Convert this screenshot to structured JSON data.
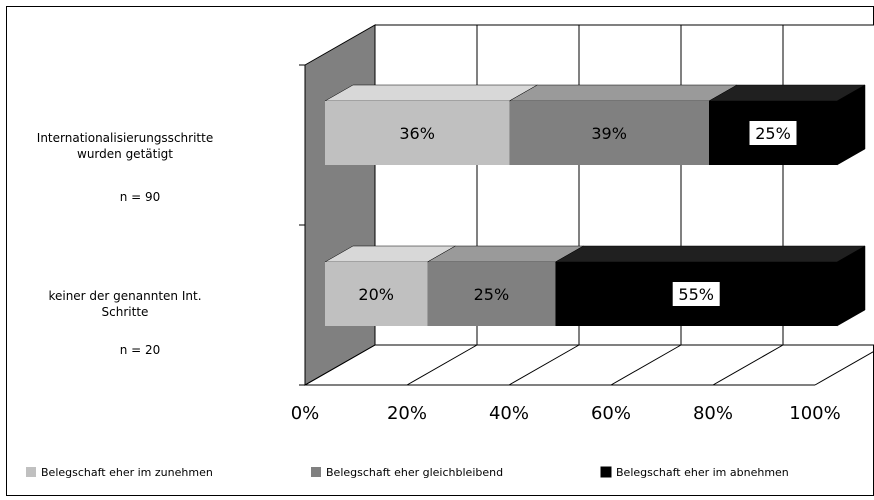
{
  "chart_data": {
    "type": "bar",
    "orientation": "horizontal",
    "stacked": true,
    "percent": true,
    "three_d": true,
    "categories": [
      {
        "lines": [
          "Internationalisierungsschritte",
          "wurden getätigt"
        ],
        "n": "n = 90"
      },
      {
        "lines": [
          "keiner der genannten Int.",
          "Schritte"
        ],
        "n": "n = 20"
      }
    ],
    "series": [
      {
        "name": "Belegschaft eher im zunehmen",
        "color": "#c0c0c0",
        "side": "#a0a0a0",
        "top": "#d8d8d8",
        "values": [
          36,
          20
        ]
      },
      {
        "name": "Belegschaft eher gleichbleibend",
        "color": "#808080",
        "side": "#606060",
        "top": "#9a9a9a",
        "values": [
          39,
          25
        ]
      },
      {
        "name": "Belegschaft eher im abnehmen",
        "color": "#000000",
        "side": "#000000",
        "top": "#202020",
        "values": [
          25,
          55
        ]
      }
    ],
    "labels": [
      [
        "36%",
        "39%",
        "25%"
      ],
      [
        "20%",
        "25%",
        "55%"
      ]
    ],
    "x_ticks": [
      "0%",
      "20%",
      "40%",
      "60%",
      "80%",
      "100%"
    ],
    "xlim": [
      0,
      100
    ],
    "grid": true,
    "legend_position": "bottom",
    "wall_color": "#808080"
  }
}
